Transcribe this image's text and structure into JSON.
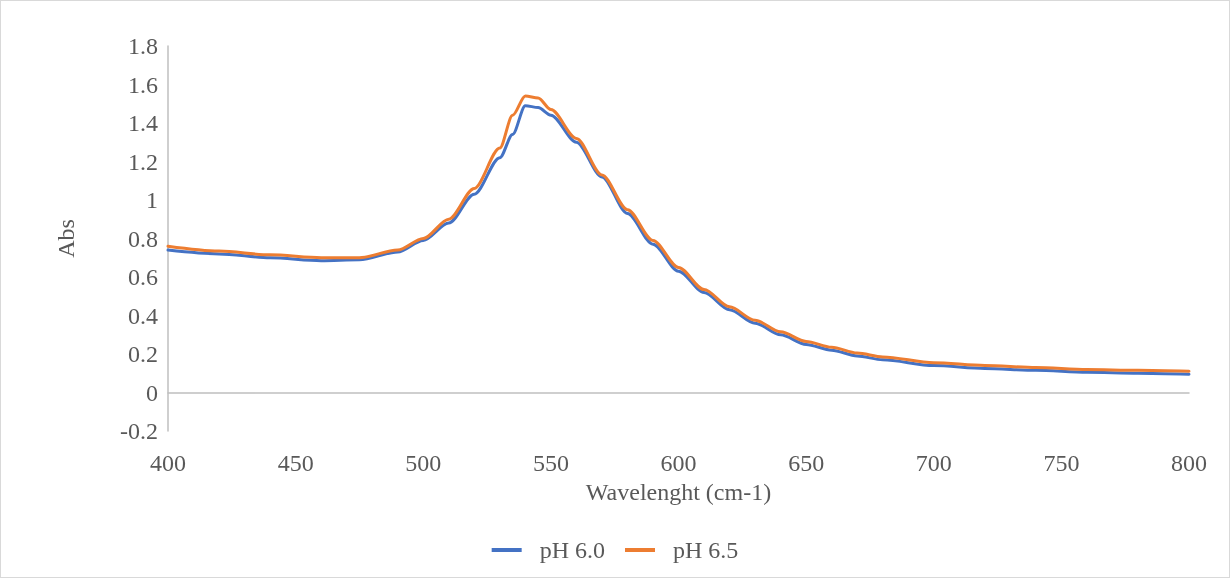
{
  "chart_data": {
    "type": "line",
    "xlabel": "Wavelenght (cm-1)",
    "ylabel": "Abs",
    "xlim": [
      400,
      800
    ],
    "xticks": [
      400,
      450,
      500,
      550,
      600,
      650,
      700,
      750,
      800
    ],
    "ylim": [
      -0.2,
      1.8
    ],
    "yticks": [
      -0.2,
      0,
      0.2,
      0.4,
      0.6,
      0.8,
      1,
      1.2,
      1.4,
      1.6,
      1.8
    ],
    "grid": false,
    "legend": "bottom",
    "marker": "none",
    "line_style": "solid",
    "series": [
      {
        "name": "pH 6.0",
        "color": "#4472c4",
        "x": [
          400,
          420,
          440,
          460,
          475,
          490,
          500,
          510,
          520,
          530,
          535,
          540,
          545,
          550,
          560,
          570,
          580,
          590,
          600,
          610,
          620,
          630,
          640,
          650,
          660,
          670,
          680,
          700,
          720,
          740,
          760,
          780,
          800
        ],
        "values": [
          0.74,
          0.72,
          0.7,
          0.685,
          0.69,
          0.73,
          0.79,
          0.88,
          1.03,
          1.22,
          1.34,
          1.49,
          1.48,
          1.44,
          1.3,
          1.12,
          0.93,
          0.77,
          0.63,
          0.52,
          0.43,
          0.36,
          0.3,
          0.25,
          0.22,
          0.19,
          0.17,
          0.14,
          0.125,
          0.115,
          0.105,
          0.1,
          0.095
        ]
      },
      {
        "name": "pH 6.5",
        "color": "#ed7d31",
        "x": [
          400,
          420,
          440,
          460,
          475,
          490,
          500,
          510,
          520,
          530,
          535,
          540,
          545,
          550,
          560,
          570,
          580,
          590,
          600,
          610,
          620,
          630,
          640,
          650,
          660,
          670,
          680,
          700,
          720,
          740,
          760,
          780,
          800
        ],
        "values": [
          0.76,
          0.735,
          0.715,
          0.7,
          0.7,
          0.74,
          0.8,
          0.9,
          1.06,
          1.27,
          1.44,
          1.54,
          1.53,
          1.47,
          1.32,
          1.13,
          0.95,
          0.79,
          0.65,
          0.535,
          0.445,
          0.375,
          0.315,
          0.265,
          0.235,
          0.205,
          0.185,
          0.155,
          0.14,
          0.13,
          0.12,
          0.115,
          0.11
        ]
      }
    ]
  }
}
